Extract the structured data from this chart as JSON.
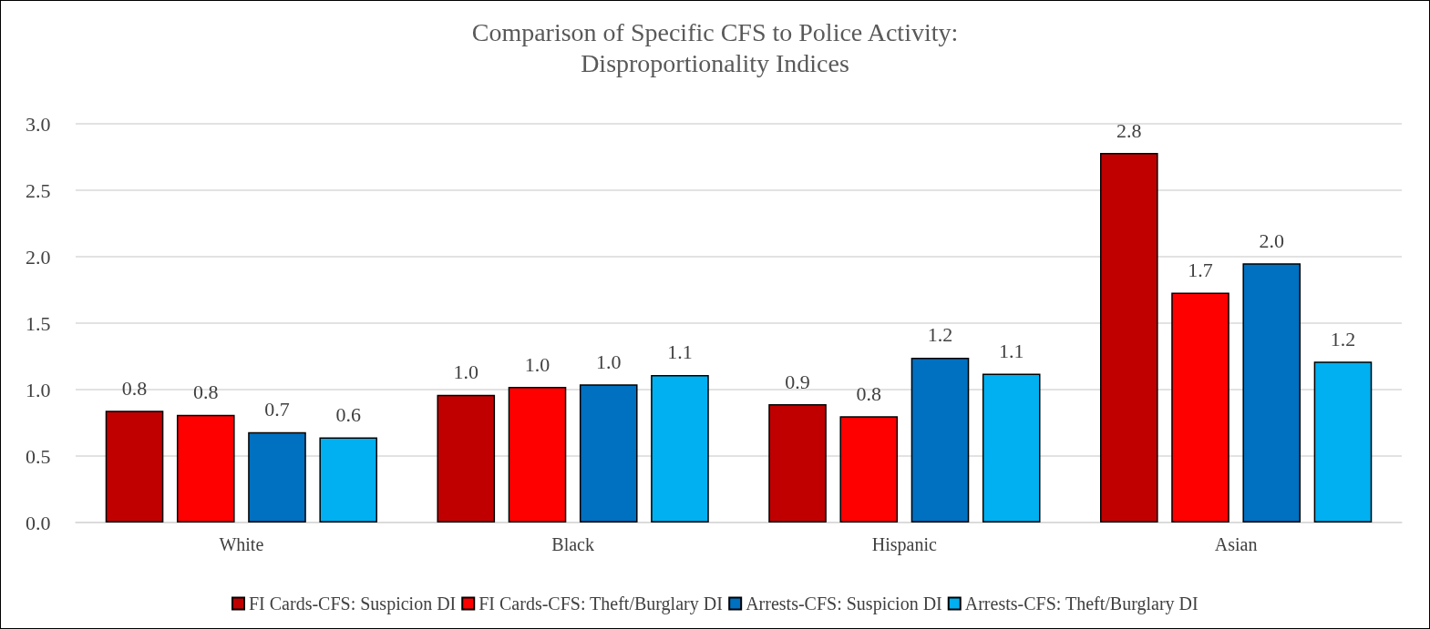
{
  "chart_data": {
    "type": "bar",
    "title": "Comparison of Specific CFS to Police Activity:\nDisproportionality Indices",
    "categories": [
      "White",
      "Black",
      "Hispanic",
      "Asian"
    ],
    "series": [
      {
        "name": "FI Cards-CFS: Suspicion DI",
        "color": "#c00000",
        "values": [
          0.84,
          0.96,
          0.89,
          2.78
        ],
        "value_labels": [
          "0.8",
          "1.0",
          "0.9",
          "2.8"
        ]
      },
      {
        "name": "FI Cards-CFS: Theft/Burglary DI",
        "color": "#ff0000",
        "values": [
          0.81,
          1.02,
          0.8,
          1.73
        ],
        "value_labels": [
          "0.8",
          "1.0",
          "0.8",
          "1.7"
        ]
      },
      {
        "name": "Arrests-CFS: Suspicion DI",
        "color": "#0070c0",
        "values": [
          0.68,
          1.04,
          1.24,
          1.95
        ],
        "value_labels": [
          "0.7",
          "1.0",
          "1.2",
          "2.0"
        ]
      },
      {
        "name": "Arrests-CFS: Theft/Burglary DI",
        "color": "#00b0f0",
        "values": [
          0.64,
          1.11,
          1.12,
          1.21
        ],
        "value_labels": [
          "0.6",
          "1.1",
          "1.1",
          "1.2"
        ]
      }
    ],
    "ylim": [
      0,
      3
    ],
    "yticks": [
      {
        "value": 0,
        "label": "0.0"
      },
      0.5,
      {
        "value": 1,
        "label": "1.0"
      },
      1.5,
      {
        "value": 2,
        "label": "2.0"
      },
      2.5,
      {
        "value": 3,
        "label": "3.0"
      }
    ],
    "grid": "y",
    "legend": "bottom"
  }
}
